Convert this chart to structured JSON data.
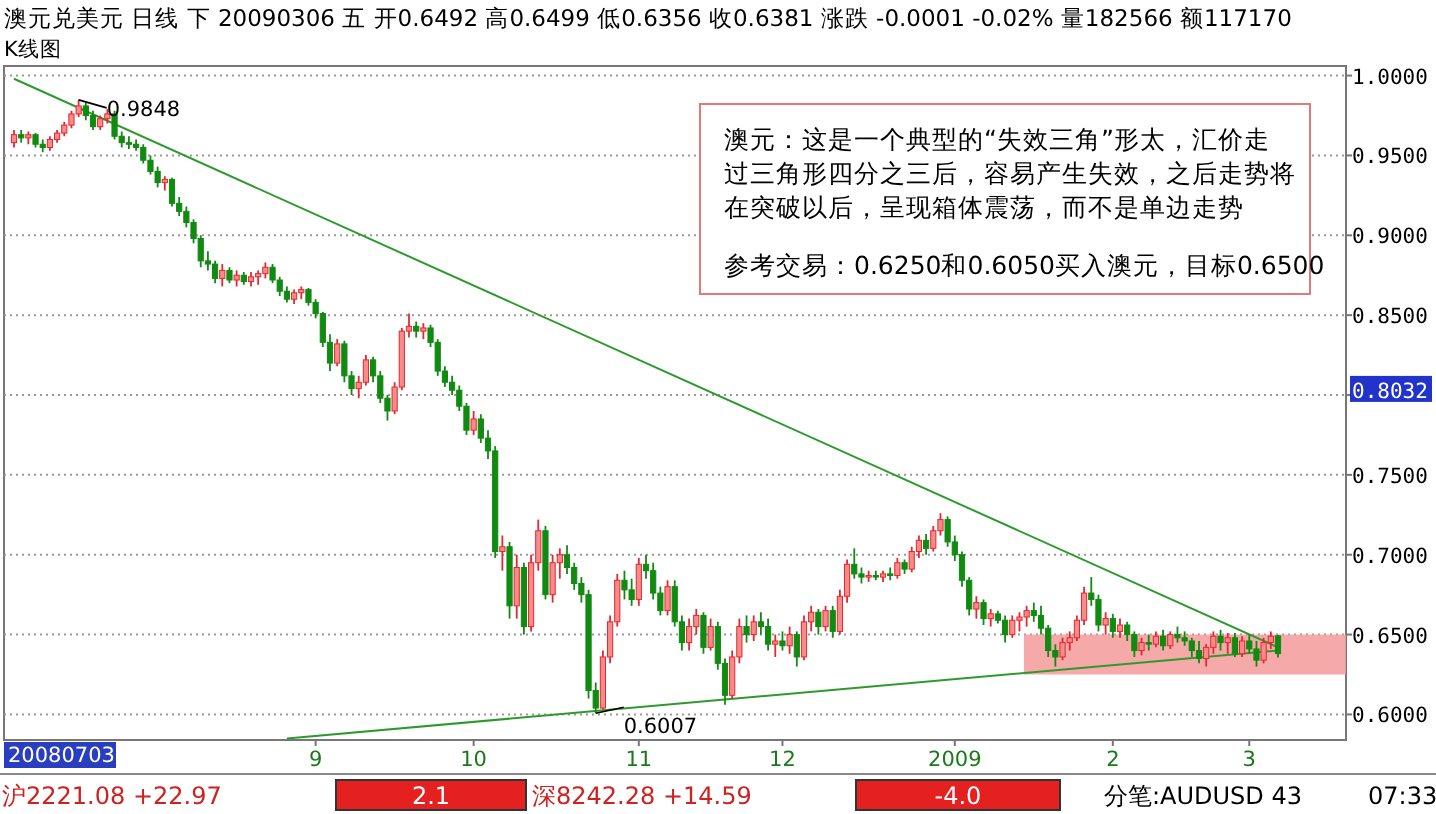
{
  "chart_data": [
    {
      "type": "candlestick",
      "title": "澳元兑美元 日线 下 20090306 五 开0.6492 高0.6499 低0.6356 收0.6381 涨跌 -0.0001 -0.02% 量182566 额117170",
      "subtitle": "K线图",
      "categories": [
        null,
        null,
        null,
        null,
        null,
        null,
        null,
        null,
        null,
        null,
        null,
        null,
        null,
        null,
        null,
        null,
        null,
        null,
        null,
        null,
        null,
        null,
        null,
        null,
        null,
        null,
        null,
        null,
        null,
        null,
        null,
        null,
        null,
        null,
        null,
        null,
        null,
        null,
        null,
        null,
        null,
        null,
        "9",
        null,
        null,
        null,
        null,
        null,
        null,
        null,
        null,
        null,
        null,
        null,
        null,
        null,
        null,
        null,
        null,
        null,
        null,
        null,
        null,
        null,
        "10",
        null,
        null,
        null,
        null,
        null,
        null,
        null,
        null,
        null,
        null,
        null,
        null,
        null,
        null,
        null,
        null,
        null,
        null,
        null,
        null,
        null,
        null,
        "11",
        null,
        null,
        null,
        null,
        null,
        null,
        null,
        null,
        null,
        null,
        null,
        null,
        null,
        null,
        null,
        null,
        null,
        null,
        null,
        "12",
        null,
        null,
        null,
        null,
        null,
        null,
        null,
        null,
        null,
        null,
        null,
        null,
        null,
        null,
        null,
        null,
        null,
        null,
        null,
        null,
        null,
        null,
        null,
        "2009",
        null,
        null,
        null,
        null,
        null,
        null,
        null,
        null,
        null,
        null,
        null,
        null,
        null,
        null,
        null,
        null,
        null,
        null,
        null,
        null,
        null,
        "2",
        null,
        null,
        null,
        null,
        null,
        null,
        null,
        null,
        null,
        null,
        null,
        null,
        null,
        null,
        null,
        null,
        null,
        null,
        "3",
        null,
        null,
        null,
        null
      ],
      "ohlc": [
        [
          0.958,
          0.966,
          0.955,
          0.963
        ],
        [
          0.963,
          0.966,
          0.958,
          0.961
        ],
        [
          0.961,
          0.965,
          0.957,
          0.963
        ],
        [
          0.963,
          0.964,
          0.955,
          0.957
        ],
        [
          0.957,
          0.96,
          0.952,
          0.955
        ],
        [
          0.955,
          0.962,
          0.953,
          0.96
        ],
        [
          0.96,
          0.966,
          0.958,
          0.964
        ],
        [
          0.964,
          0.971,
          0.962,
          0.969
        ],
        [
          0.969,
          0.978,
          0.967,
          0.976
        ],
        [
          0.976,
          0.9848,
          0.974,
          0.981
        ],
        [
          0.981,
          0.983,
          0.972,
          0.975
        ],
        [
          0.975,
          0.978,
          0.966,
          0.968
        ],
        [
          0.968,
          0.975,
          0.966,
          0.973
        ],
        [
          0.973,
          0.979,
          0.97,
          0.976
        ],
        [
          0.976,
          0.978,
          0.96,
          0.962
        ],
        [
          0.962,
          0.965,
          0.955,
          0.958
        ],
        [
          0.958,
          0.962,
          0.954,
          0.957
        ],
        [
          0.957,
          0.96,
          0.953,
          0.955
        ],
        [
          0.955,
          0.957,
          0.945,
          0.947
        ],
        [
          0.947,
          0.95,
          0.938,
          0.94
        ],
        [
          0.94,
          0.943,
          0.93,
          0.933
        ],
        [
          0.933,
          0.937,
          0.928,
          0.935
        ],
        [
          0.935,
          0.936,
          0.918,
          0.92
        ],
        [
          0.92,
          0.924,
          0.912,
          0.915
        ],
        [
          0.915,
          0.918,
          0.905,
          0.908
        ],
        [
          0.908,
          0.91,
          0.895,
          0.898
        ],
        [
          0.898,
          0.9,
          0.88,
          0.884
        ],
        [
          0.884,
          0.89,
          0.878,
          0.882
        ],
        [
          0.882,
          0.884,
          0.87,
          0.873
        ],
        [
          0.873,
          0.882,
          0.868,
          0.878
        ],
        [
          0.878,
          0.88,
          0.87,
          0.872
        ],
        [
          0.872,
          0.878,
          0.868,
          0.875
        ],
        [
          0.875,
          0.877,
          0.869,
          0.871
        ],
        [
          0.871,
          0.877,
          0.868,
          0.874
        ],
        [
          0.874,
          0.878,
          0.869,
          0.876
        ],
        [
          0.876,
          0.883,
          0.873,
          0.88
        ],
        [
          0.88,
          0.882,
          0.87,
          0.872
        ],
        [
          0.872,
          0.874,
          0.862,
          0.865
        ],
        [
          0.865,
          0.868,
          0.858,
          0.86
        ],
        [
          0.86,
          0.866,
          0.857,
          0.864
        ],
        [
          0.864,
          0.868,
          0.86,
          0.866
        ],
        [
          0.866,
          0.867,
          0.856,
          0.858
        ],
        [
          0.858,
          0.86,
          0.848,
          0.851
        ],
        [
          0.851,
          0.852,
          0.83,
          0.833
        ],
        [
          0.833,
          0.838,
          0.815,
          0.82
        ],
        [
          0.82,
          0.835,
          0.818,
          0.832
        ],
        [
          0.832,
          0.834,
          0.808,
          0.812
        ],
        [
          0.812,
          0.815,
          0.8,
          0.804
        ],
        [
          0.804,
          0.812,
          0.798,
          0.808
        ],
        [
          0.808,
          0.825,
          0.806,
          0.822
        ],
        [
          0.822,
          0.824,
          0.808,
          0.812
        ],
        [
          0.812,
          0.815,
          0.795,
          0.798
        ],
        [
          0.798,
          0.8,
          0.784,
          0.79
        ],
        [
          0.79,
          0.808,
          0.788,
          0.805
        ],
        [
          0.805,
          0.842,
          0.803,
          0.84
        ],
        [
          0.84,
          0.851,
          0.836,
          0.843
        ],
        [
          0.843,
          0.846,
          0.836,
          0.84
        ],
        [
          0.84,
          0.845,
          0.835,
          0.842
        ],
        [
          0.842,
          0.844,
          0.83,
          0.833
        ],
        [
          0.833,
          0.835,
          0.812,
          0.815
        ],
        [
          0.815,
          0.818,
          0.805,
          0.808
        ],
        [
          0.808,
          0.812,
          0.8,
          0.803
        ],
        [
          0.803,
          0.806,
          0.79,
          0.793
        ],
        [
          0.793,
          0.795,
          0.775,
          0.778
        ],
        [
          0.778,
          0.79,
          0.775,
          0.785
        ],
        [
          0.785,
          0.788,
          0.77,
          0.773
        ],
        [
          0.773,
          0.778,
          0.76,
          0.765
        ],
        [
          0.765,
          0.768,
          0.698,
          0.702
        ],
        [
          0.702,
          0.712,
          0.69,
          0.705
        ],
        [
          0.705,
          0.708,
          0.66,
          0.668
        ],
        [
          0.668,
          0.7,
          0.66,
          0.692
        ],
        [
          0.692,
          0.695,
          0.65,
          0.655
        ],
        [
          0.655,
          0.7,
          0.652,
          0.695
        ],
        [
          0.695,
          0.722,
          0.69,
          0.715
        ],
        [
          0.715,
          0.718,
          0.672,
          0.675
        ],
        [
          0.675,
          0.7,
          0.67,
          0.695
        ],
        [
          0.695,
          0.704,
          0.685,
          0.7
        ],
        [
          0.7,
          0.706,
          0.688,
          0.692
        ],
        [
          0.692,
          0.695,
          0.678,
          0.682
        ],
        [
          0.682,
          0.686,
          0.67,
          0.675
        ],
        [
          0.675,
          0.678,
          0.61,
          0.615
        ],
        [
          0.615,
          0.62,
          0.6007,
          0.604
        ],
        [
          0.604,
          0.64,
          0.603,
          0.636
        ],
        [
          0.636,
          0.662,
          0.632,
          0.658
        ],
        [
          0.658,
          0.688,
          0.655,
          0.684
        ],
        [
          0.684,
          0.69,
          0.672,
          0.678
        ],
        [
          0.678,
          0.685,
          0.668,
          0.672
        ],
        [
          0.672,
          0.698,
          0.668,
          0.694
        ],
        [
          0.694,
          0.7,
          0.685,
          0.69
        ],
        [
          0.69,
          0.695,
          0.672,
          0.676
        ],
        [
          0.676,
          0.68,
          0.662,
          0.665
        ],
        [
          0.665,
          0.684,
          0.662,
          0.68
        ],
        [
          0.68,
          0.684,
          0.655,
          0.658
        ],
        [
          0.658,
          0.662,
          0.64,
          0.645
        ],
        [
          0.645,
          0.66,
          0.64,
          0.655
        ],
        [
          0.655,
          0.666,
          0.65,
          0.662
        ],
        [
          0.662,
          0.664,
          0.638,
          0.642
        ],
        [
          0.642,
          0.66,
          0.64,
          0.655
        ],
        [
          0.655,
          0.658,
          0.628,
          0.632
        ],
        [
          0.632,
          0.635,
          0.606,
          0.612
        ],
        [
          0.612,
          0.64,
          0.61,
          0.636
        ],
        [
          0.636,
          0.66,
          0.632,
          0.655
        ],
        [
          0.655,
          0.662,
          0.645,
          0.65
        ],
        [
          0.65,
          0.662,
          0.646,
          0.658
        ],
        [
          0.658,
          0.664,
          0.65,
          0.655
        ],
        [
          0.655,
          0.66,
          0.64,
          0.644
        ],
        [
          0.644,
          0.65,
          0.636,
          0.646
        ],
        [
          0.646,
          0.652,
          0.64,
          0.643
        ],
        [
          0.643,
          0.655,
          0.638,
          0.65
        ],
        [
          0.65,
          0.652,
          0.63,
          0.636
        ],
        [
          0.636,
          0.662,
          0.634,
          0.658
        ],
        [
          0.658,
          0.668,
          0.652,
          0.664
        ],
        [
          0.664,
          0.666,
          0.65,
          0.655
        ],
        [
          0.655,
          0.668,
          0.652,
          0.665
        ],
        [
          0.665,
          0.668,
          0.648,
          0.652
        ],
        [
          0.652,
          0.678,
          0.65,
          0.674
        ],
        [
          0.674,
          0.697,
          0.67,
          0.694
        ],
        [
          0.694,
          0.704,
          0.685,
          0.688
        ],
        [
          0.688,
          0.692,
          0.682,
          0.686
        ],
        [
          0.686,
          0.69,
          0.683,
          0.687
        ],
        [
          0.687,
          0.69,
          0.684,
          0.686
        ],
        [
          0.686,
          0.69,
          0.683,
          0.688
        ],
        [
          0.688,
          0.692,
          0.684,
          0.687
        ],
        [
          0.687,
          0.698,
          0.685,
          0.695
        ],
        [
          0.695,
          0.697,
          0.688,
          0.691
        ],
        [
          0.691,
          0.705,
          0.689,
          0.702
        ],
        [
          0.702,
          0.712,
          0.698,
          0.709
        ],
        [
          0.709,
          0.713,
          0.7,
          0.704
        ],
        [
          0.704,
          0.718,
          0.702,
          0.715
        ],
        [
          0.715,
          0.726,
          0.712,
          0.722
        ],
        [
          0.722,
          0.724,
          0.705,
          0.708
        ],
        [
          0.708,
          0.712,
          0.696,
          0.7
        ],
        [
          0.7,
          0.702,
          0.68,
          0.684
        ],
        [
          0.684,
          0.686,
          0.662,
          0.666
        ],
        [
          0.666,
          0.674,
          0.66,
          0.67
        ],
        [
          0.67,
          0.672,
          0.656,
          0.66
        ],
        [
          0.66,
          0.666,
          0.655,
          0.663
        ],
        [
          0.663,
          0.665,
          0.657,
          0.659
        ],
        [
          0.659,
          0.662,
          0.645,
          0.65
        ],
        [
          0.65,
          0.662,
          0.648,
          0.659
        ],
        [
          0.659,
          0.664,
          0.652,
          0.661
        ],
        [
          0.661,
          0.668,
          0.655,
          0.665
        ],
        [
          0.665,
          0.67,
          0.658,
          0.662
        ],
        [
          0.662,
          0.668,
          0.65,
          0.654
        ],
        [
          0.654,
          0.656,
          0.636,
          0.64
        ],
        [
          0.64,
          0.644,
          0.63,
          0.636
        ],
        [
          0.636,
          0.648,
          0.634,
          0.645
        ],
        [
          0.645,
          0.652,
          0.64,
          0.648
        ],
        [
          0.648,
          0.662,
          0.646,
          0.659
        ],
        [
          0.659,
          0.68,
          0.656,
          0.676
        ],
        [
          0.676,
          0.686,
          0.668,
          0.672
        ],
        [
          0.672,
          0.675,
          0.652,
          0.656
        ],
        [
          0.656,
          0.664,
          0.65,
          0.66
        ],
        [
          0.66,
          0.663,
          0.648,
          0.652
        ],
        [
          0.652,
          0.66,
          0.648,
          0.656
        ],
        [
          0.656,
          0.658,
          0.646,
          0.65
        ],
        [
          0.65,
          0.652,
          0.636,
          0.64
        ],
        [
          0.64,
          0.648,
          0.637,
          0.645
        ],
        [
          0.645,
          0.65,
          0.64,
          0.644
        ],
        [
          0.644,
          0.652,
          0.642,
          0.649
        ],
        [
          0.649,
          0.653,
          0.64,
          0.643
        ],
        [
          0.643,
          0.652,
          0.641,
          0.65
        ],
        [
          0.65,
          0.655,
          0.645,
          0.648
        ],
        [
          0.648,
          0.652,
          0.643,
          0.646
        ],
        [
          0.646,
          0.648,
          0.636,
          0.64
        ],
        [
          0.64,
          0.646,
          0.632,
          0.635
        ],
        [
          0.635,
          0.644,
          0.63,
          0.642
        ],
        [
          0.642,
          0.652,
          0.638,
          0.649
        ],
        [
          0.649,
          0.653,
          0.64,
          0.645
        ],
        [
          0.645,
          0.651,
          0.638,
          0.648
        ],
        [
          0.648,
          0.651,
          0.636,
          0.638
        ],
        [
          0.638,
          0.649,
          0.636,
          0.646
        ],
        [
          0.646,
          0.65,
          0.638,
          0.641
        ],
        [
          0.641,
          0.646,
          0.63,
          0.634
        ],
        [
          0.634,
          0.648,
          0.632,
          0.645
        ],
        [
          0.645,
          0.652,
          0.641,
          0.649
        ],
        [
          0.6492,
          0.6499,
          0.6356,
          0.6381
        ]
      ],
      "series": [
        {
          "type": "line",
          "color": "#2e9a2e",
          "values": [
            0.998,
            null,
            null,
            null,
            null,
            null,
            null,
            null,
            null,
            null,
            null,
            null,
            null,
            null,
            null,
            null,
            null,
            null,
            null,
            null,
            null,
            null,
            null,
            null,
            null,
            null,
            null,
            null,
            null,
            null,
            null,
            null,
            null,
            null,
            null,
            null,
            null,
            null,
            null,
            null,
            null,
            null,
            null,
            null,
            null,
            null,
            null,
            null,
            null,
            null,
            null,
            null,
            null,
            null,
            null,
            null,
            null,
            null,
            null,
            null,
            null,
            null,
            null,
            null,
            null,
            null,
            null,
            null,
            null,
            null,
            null,
            null,
            null,
            null,
            null,
            null,
            null,
            null,
            null,
            null,
            null,
            null,
            null,
            null,
            null,
            null,
            null,
            null,
            null,
            null,
            null,
            null,
            null,
            null,
            null,
            null,
            null,
            null,
            null,
            null,
            null,
            null,
            null,
            null,
            null,
            null,
            null,
            null,
            null,
            null,
            null,
            null,
            null,
            null,
            null,
            null,
            null,
            null,
            null,
            null,
            null,
            null,
            null,
            null,
            null,
            null,
            null,
            null,
            null,
            null,
            null,
            null,
            null,
            null,
            null,
            null,
            null,
            null,
            null,
            null,
            null,
            null,
            null,
            null,
            null,
            null,
            null,
            null,
            null,
            null,
            null,
            null,
            null,
            null,
            null,
            null,
            null,
            null,
            null,
            null,
            null,
            null,
            null,
            null,
            null,
            null,
            null,
            null,
            null,
            null,
            null,
            null,
            null,
            null,
            null,
            null,
            0.642
          ]
        },
        {
          "type": "line",
          "color": "#2e9a2e",
          "values": [
            null,
            null,
            null,
            null,
            null,
            null,
            null,
            null,
            null,
            null,
            null,
            null,
            null,
            null,
            null,
            null,
            null,
            null,
            null,
            null,
            null,
            null,
            null,
            null,
            null,
            null,
            null,
            null,
            null,
            null,
            null,
            null,
            null,
            null,
            null,
            null,
            null,
            null,
            0.585,
            null,
            null,
            null,
            null,
            null,
            null,
            null,
            null,
            null,
            null,
            null,
            null,
            null,
            null,
            null,
            null,
            null,
            null,
            null,
            null,
            null,
            null,
            null,
            null,
            null,
            null,
            null,
            null,
            null,
            null,
            null,
            null,
            null,
            null,
            null,
            null,
            null,
            null,
            null,
            null,
            null,
            null,
            null,
            null,
            null,
            null,
            null,
            null,
            null,
            null,
            null,
            null,
            null,
            null,
            null,
            null,
            null,
            null,
            null,
            null,
            null,
            null,
            null,
            null,
            null,
            null,
            null,
            null,
            null,
            null,
            null,
            null,
            null,
            null,
            null,
            null,
            null,
            null,
            null,
            null,
            null,
            null,
            null,
            null,
            null,
            null,
            null,
            null,
            null,
            null,
            null,
            null,
            null,
            null,
            null,
            null,
            null,
            null,
            null,
            null,
            null,
            null,
            null,
            null,
            null,
            null,
            null,
            null,
            null,
            null,
            null,
            null,
            null,
            null,
            null,
            null,
            null,
            null,
            null,
            null,
            null,
            null,
            null,
            null,
            null,
            null,
            null,
            null,
            null,
            null,
            null,
            null,
            null,
            null,
            null,
            null,
            null,
            0.64
          ]
        }
      ],
      "ylim": [
        0.584,
        1.006
      ],
      "yticks": [
        {
          "value": 0.6,
          "label": "0.6000"
        },
        {
          "value": 0.65,
          "label": "0.6500"
        },
        {
          "value": 0.7,
          "label": "0.7000"
        },
        {
          "value": 0.75,
          "label": "0.7500"
        },
        {
          "value": 0.8,
          "label": null
        },
        {
          "value": 0.85,
          "label": "0.8500"
        },
        {
          "value": 0.9,
          "label": "0.9000"
        },
        {
          "value": 0.95,
          "label": "0.9500"
        },
        {
          "value": 1.0,
          "label": "1.0000"
        }
      ],
      "grid": "y",
      "bands": [
        {
          "axis": "y",
          "from": 0.625,
          "to": 0.65,
          "color": "#f49a9a"
        }
      ],
      "annotations": [
        "澳元：这是一个典型的“失效三角”形太，汇价走过三角形四分之三后，容易产生失效，之后走势将在突破以后，呈现箱体震荡，而不是单边走势",
        "参考交易：0.6250和0.6050买入澳元，目标0.6500",
        "0.9848",
        {
          "text": "0.6007",
          "y": 0.6007
        },
        "0.8032",
        "20080703"
      ]
    },
    {
      "type": "other",
      "annotations": [
        "沪2221.08 +22.97",
        "2.1",
        "深8242.28 +14.59",
        "-4.0",
        "分笔:AUDUSD 43",
        "07:33"
      ]
    }
  ]
}
